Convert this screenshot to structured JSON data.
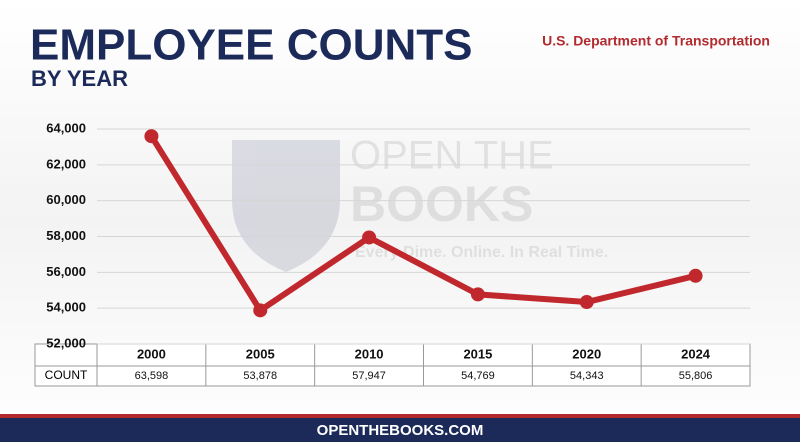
{
  "chart_data": {
    "type": "line",
    "title": "EMPLOYEE COUNTS",
    "subtitle": "BY YEAR",
    "source": "U.S. Department of Transportation",
    "watermark": [
      "OPEN THE",
      "BOOKS",
      "Every Dime. Online. In Real Time."
    ],
    "footer": "OPENTHEBOOKS.COM",
    "categories": [
      "2000",
      "2005",
      "2010",
      "2015",
      "2020",
      "2024"
    ],
    "row_label": "COUNT",
    "values": [
      63598,
      53878,
      57947,
      54769,
      54343,
      55806
    ],
    "value_labels": [
      "63,598",
      "53,878",
      "57,947",
      "54,769",
      "54,343",
      "55,806"
    ],
    "color": "#c0282d",
    "ylim": [
      52000,
      64000
    ],
    "yticks": [
      {
        "value": 52000,
        "label": "52,000"
      },
      {
        "value": 54000,
        "label": "54,000"
      },
      {
        "value": 56000,
        "label": "56,000"
      },
      {
        "value": 58000,
        "label": "58,000"
      },
      {
        "value": 60000,
        "label": "60,000"
      },
      {
        "value": 62000,
        "label": "62,000"
      },
      {
        "value": 64000,
        "label": "64,000"
      }
    ],
    "grid": true
  }
}
